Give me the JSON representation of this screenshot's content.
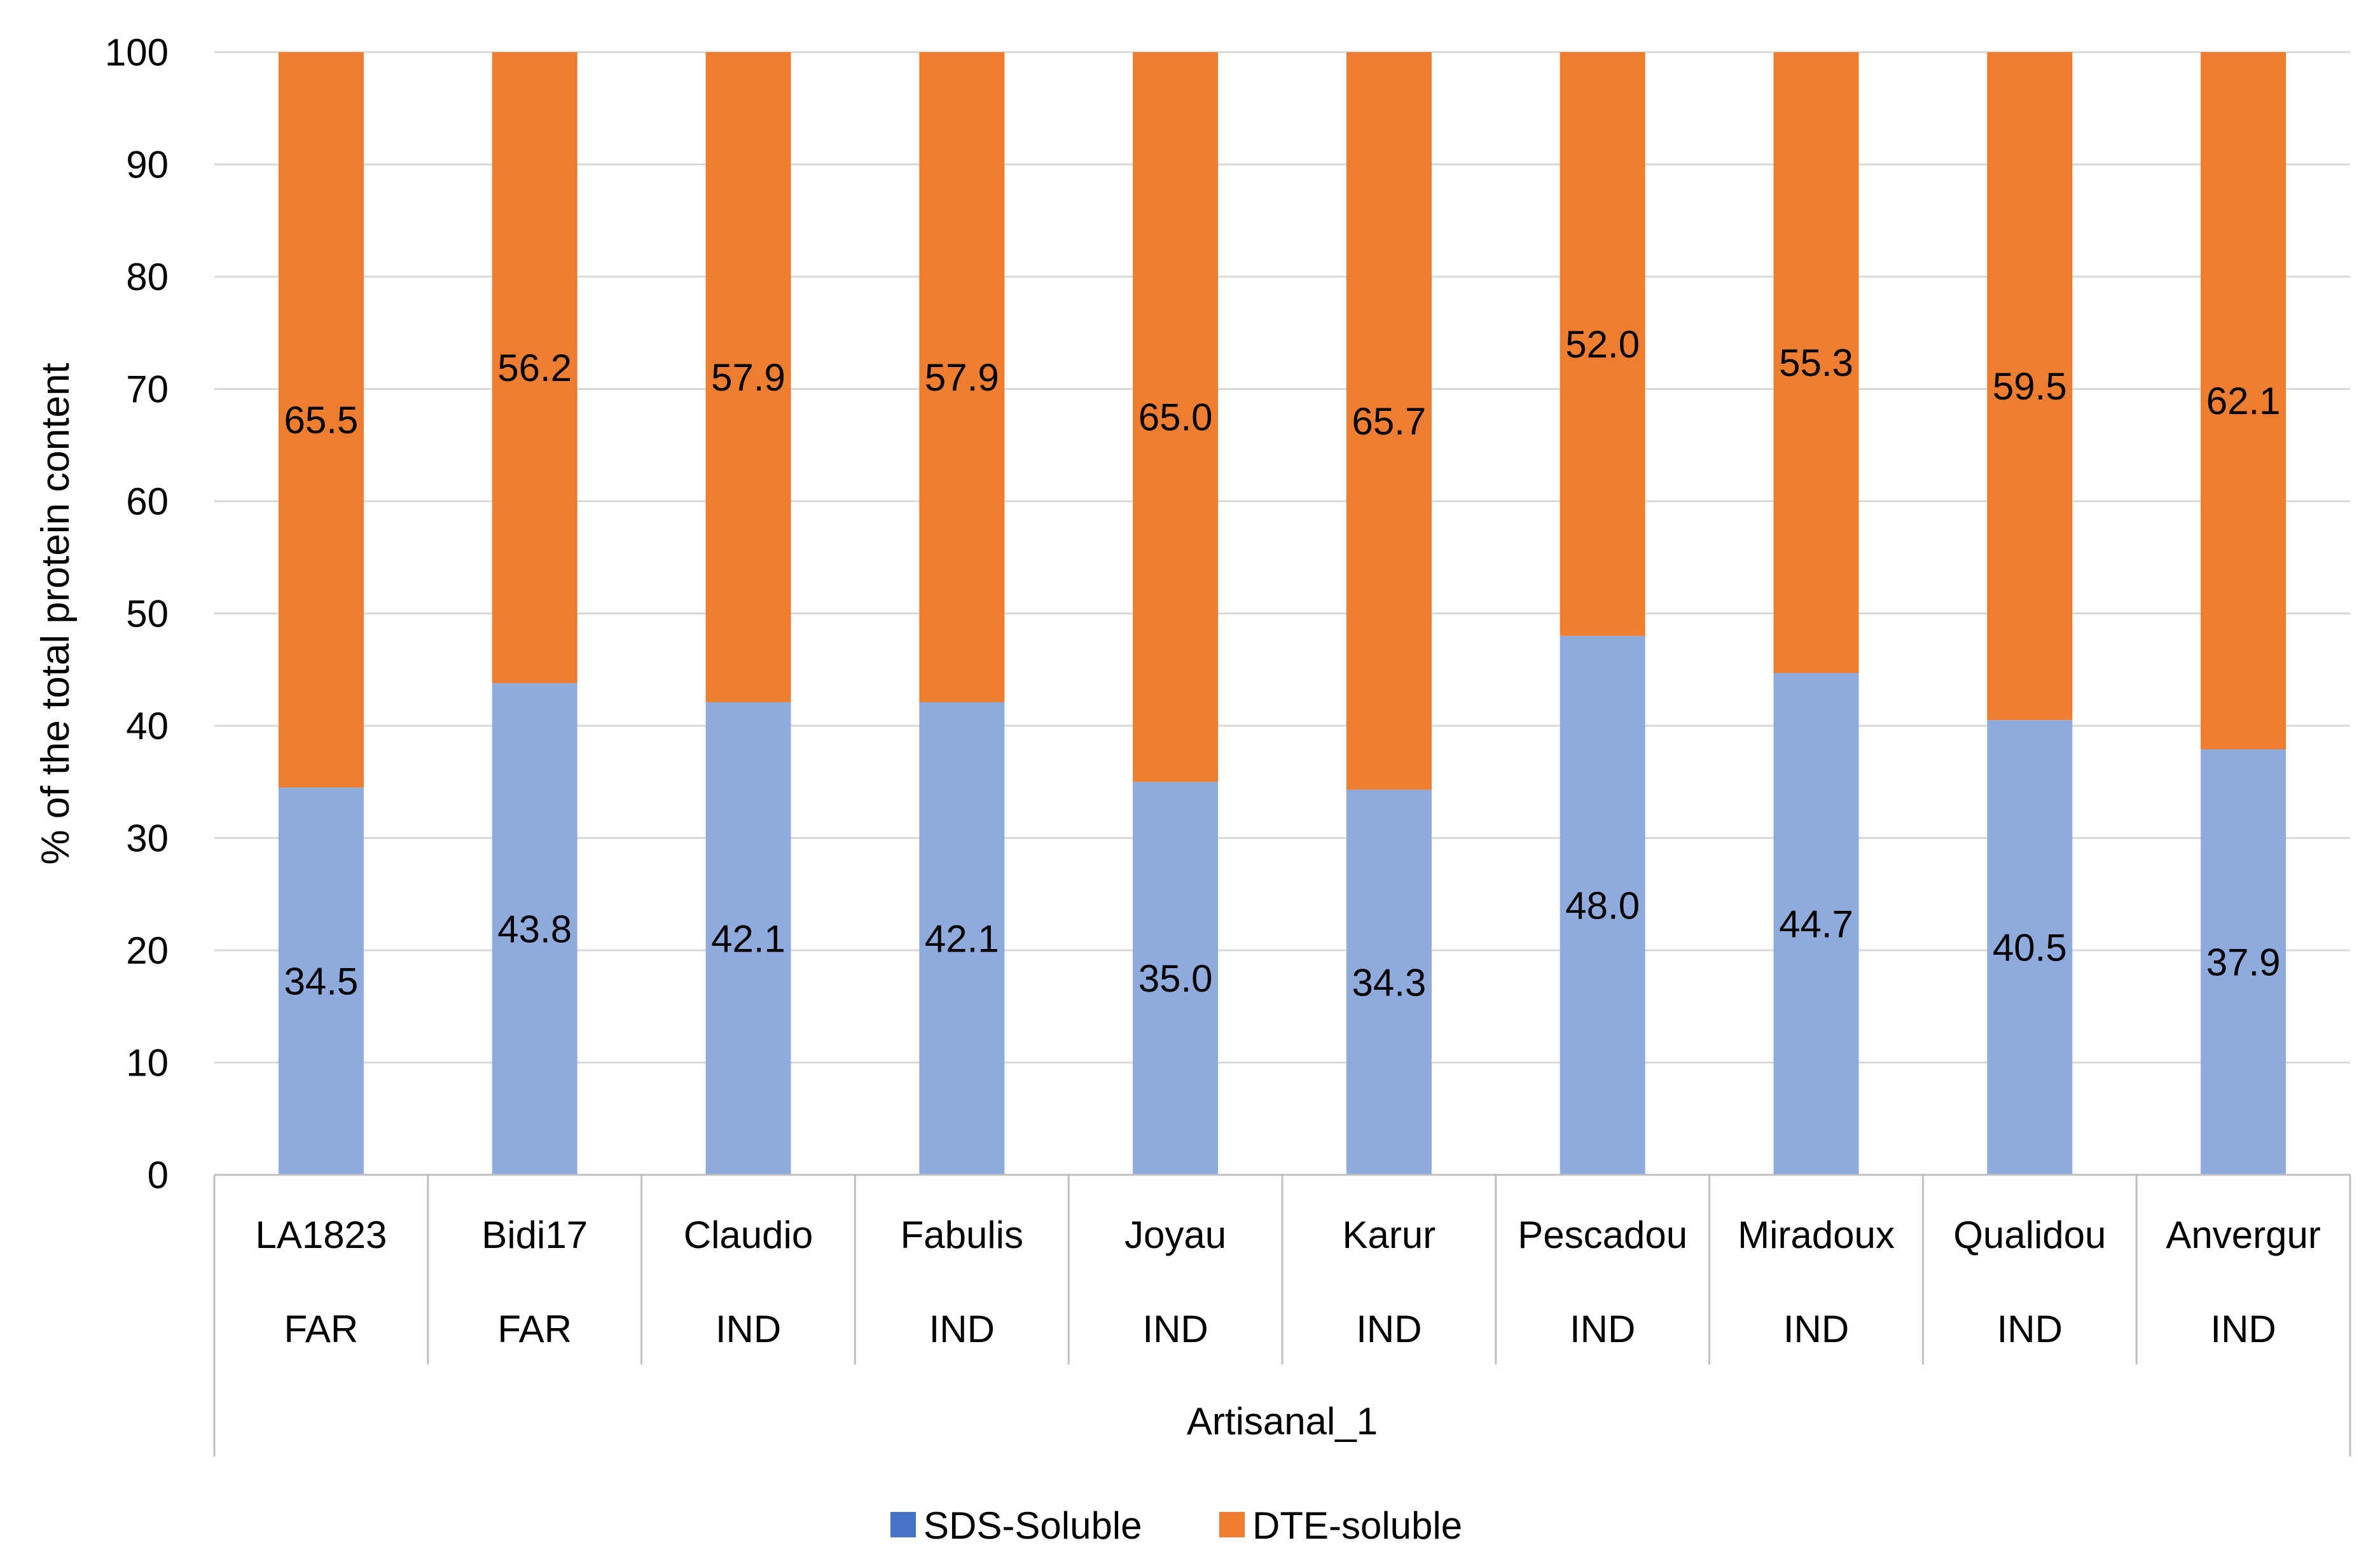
{
  "chart_data": {
    "type": "bar",
    "stacked": true,
    "title": "",
    "ylabel": "% of the total protein content",
    "xlabel": "",
    "ylim": [
      0,
      100
    ],
    "y_ticks": [
      0,
      10,
      20,
      30,
      40,
      50,
      60,
      70,
      80,
      90,
      100
    ],
    "grid": true,
    "legend_position": "bottom",
    "categories": [
      "LA1823",
      "Bidi17",
      "Claudio",
      "Fabulis",
      "Joyau",
      "Karur",
      "Pescadou",
      "Miradoux",
      "Qualidou",
      "Anvergur"
    ],
    "category_groups": [
      "FAR",
      "FAR",
      "IND",
      "IND",
      "IND",
      "IND",
      "IND",
      "IND",
      "IND",
      "IND"
    ],
    "outer_group": "Artisanal_1",
    "series": [
      {
        "name": "SDS-Soluble",
        "color": "#8faadc",
        "legend_color": "#4472c4",
        "values": [
          34.5,
          43.8,
          42.1,
          42.1,
          35.0,
          34.3,
          48.0,
          44.7,
          40.5,
          37.9
        ],
        "labels": [
          "34.5",
          "43.8",
          "42.1",
          "42.1",
          "35.0",
          "34.3",
          "48.0",
          "44.7",
          "40.5",
          "37.9"
        ]
      },
      {
        "name": "DTE-soluble",
        "color": "#ed7d31",
        "legend_color": "#ed7d31",
        "values": [
          65.5,
          56.2,
          57.9,
          57.9,
          65.0,
          65.7,
          52.0,
          55.3,
          59.5,
          62.1
        ],
        "labels": [
          "65.5",
          "56.2",
          "57.9",
          "57.9",
          "65.0",
          "65.7",
          "52.0",
          "55.3",
          "59.5",
          "62.1"
        ]
      }
    ]
  }
}
